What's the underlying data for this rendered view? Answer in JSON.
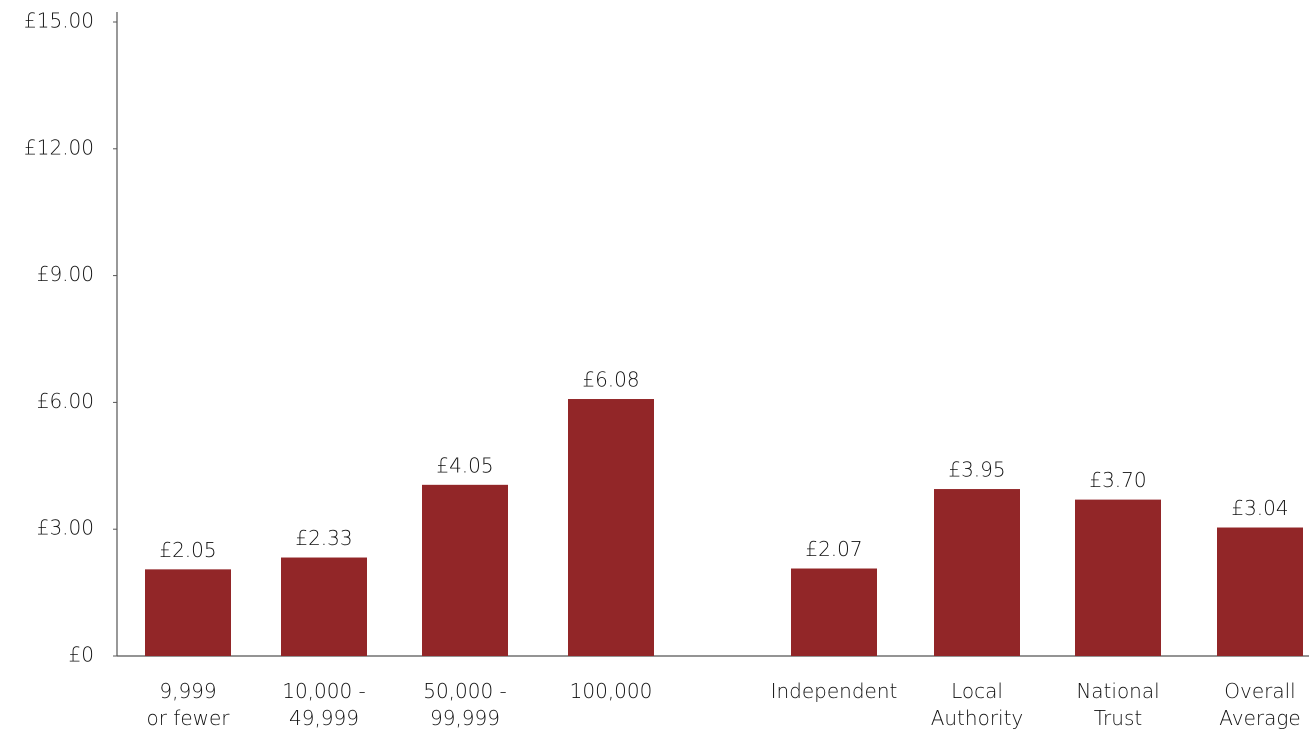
{
  "chart_data": {
    "type": "bar",
    "categories": [
      "9,999\nor fewer",
      "10,000 -\n49,999",
      "50,000 -\n99,999",
      "100,000",
      "Independent",
      "Local\nAuthority",
      "National\nTrust",
      "Overall\nAverage"
    ],
    "values": [
      2.05,
      2.33,
      4.05,
      6.08,
      2.07,
      3.95,
      3.7,
      3.04
    ],
    "value_labels": [
      "£2.05",
      "£2.33",
      "£4.05",
      "£6.08",
      "£2.07",
      "£3.95",
      "£3.70",
      "£3.04"
    ],
    "color": "#922628",
    "ylim": [
      0,
      15
    ],
    "yticks": [
      {
        "value": 0,
        "label": "£0"
      },
      {
        "value": 3,
        "label": "£3.00"
      },
      {
        "value": 6,
        "label": "£6.00"
      },
      {
        "value": 9,
        "label": "£9.00"
      },
      {
        "value": 12,
        "label": "£12.00"
      },
      {
        "value": 15,
        "label": "£15.00"
      }
    ],
    "grid": false
  }
}
